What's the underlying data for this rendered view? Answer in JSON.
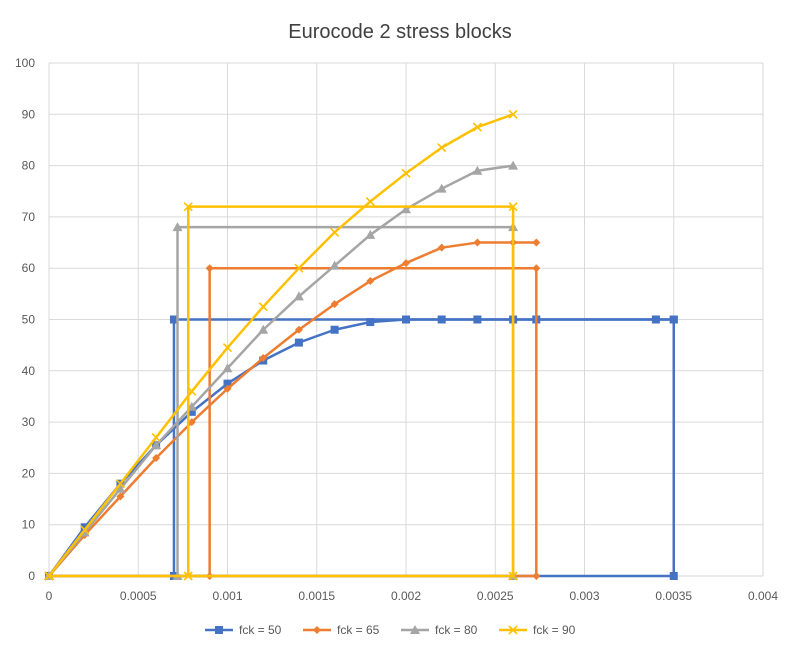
{
  "chart_data": {
    "type": "scatter",
    "title": "Eurocode 2 stress blocks",
    "xlabel": "",
    "ylabel": "",
    "xlim": [
      0,
      0.004
    ],
    "ylim": [
      0,
      100
    ],
    "x_ticks": [
      0,
      0.0005,
      0.001,
      0.0015,
      0.002,
      0.0025,
      0.003,
      0.0035,
      0.004
    ],
    "x_tick_labels": [
      "0",
      "0.0005",
      "0.001",
      "0.0015",
      "0.002",
      "0.0025",
      "0.003",
      "0.0035",
      "0.004"
    ],
    "y_ticks": [
      0,
      10,
      20,
      30,
      40,
      50,
      60,
      70,
      80,
      90,
      100
    ],
    "y_tick_labels": [
      "0",
      "10",
      "20",
      "30",
      "40",
      "50",
      "60",
      "70",
      "80",
      "90",
      "100"
    ],
    "grid": true,
    "legend_position": "bottom",
    "series": [
      {
        "name": "fck = 50",
        "color": "#4472C4",
        "marker": "square",
        "curve": {
          "x": [
            0,
            0.0002,
            0.0004,
            0.0006,
            0.0008,
            0.001,
            0.0012,
            0.0014,
            0.0016,
            0.0018,
            0.002,
            0.0022,
            0.0024,
            0.0026,
            0.0028,
            0.003,
            0.0032,
            0.0034,
            0.0035
          ],
          "y": [
            0,
            9.5,
            18,
            25.5,
            32,
            37.5,
            42,
            45.5,
            48,
            49.5,
            50,
            50,
            50,
            50,
            50,
            50,
            50,
            50,
            50
          ]
        },
        "curve_markers_x": [
          0,
          0.0002,
          0.0004,
          0.0006,
          0.0008,
          0.001,
          0.0012,
          0.0014,
          0.0016,
          0.0018,
          0.002,
          0.0022,
          0.0024,
          0.0026,
          0.00273,
          0.0034,
          0.0035
        ],
        "curve_markers_y": [
          0,
          9.5,
          18,
          25.5,
          32,
          37.5,
          42,
          45.5,
          48,
          49.5,
          50,
          50,
          50,
          50,
          50,
          50,
          50
        ],
        "block": {
          "x": [
            0,
            0.0007,
            0.0007,
            0.0035,
            0.0035,
            0
          ],
          "y": [
            0,
            0,
            50,
            50,
            0,
            0
          ]
        }
      },
      {
        "name": "fck = 65",
        "color": "#ED7D31",
        "marker": "diamond",
        "curve": {
          "x": [
            0,
            0.0002,
            0.0004,
            0.0006,
            0.0008,
            0.001,
            0.0012,
            0.0014,
            0.0016,
            0.0018,
            0.002,
            0.0022,
            0.0024,
            0.0026,
            0.00273
          ],
          "y": [
            0,
            8,
            15.5,
            23,
            30,
            36.5,
            42.5,
            48,
            53,
            57.5,
            61,
            64,
            65,
            65,
            65
          ]
        },
        "block": {
          "x": [
            0,
            0.0009,
            0.0009,
            0.00273,
            0.00273,
            0
          ],
          "y": [
            0,
            0,
            60,
            60,
            0,
            0
          ]
        }
      },
      {
        "name": "fck = 80",
        "color": "#A5A5A5",
        "marker": "triangle",
        "curve": {
          "x": [
            0,
            0.0002,
            0.0004,
            0.0006,
            0.0008,
            0.001,
            0.0012,
            0.0014,
            0.0016,
            0.0018,
            0.002,
            0.0022,
            0.0024,
            0.0026
          ],
          "y": [
            0,
            8.5,
            17,
            25.5,
            33,
            40.5,
            48,
            54.5,
            60.5,
            66.5,
            71.5,
            75.5,
            79,
            80
          ]
        },
        "block": {
          "x": [
            0,
            0.00072,
            0.00072,
            0.0026,
            0.0026,
            0
          ],
          "y": [
            0,
            0,
            68,
            68,
            0,
            0
          ]
        }
      },
      {
        "name": "fck = 90",
        "color": "#FFC000",
        "marker": "x",
        "curve": {
          "x": [
            0,
            0.0002,
            0.0004,
            0.0006,
            0.0008,
            0.001,
            0.0012,
            0.0014,
            0.0016,
            0.0018,
            0.002,
            0.0022,
            0.0024,
            0.0026
          ],
          "y": [
            0,
            9,
            18,
            27,
            36,
            44.5,
            52.5,
            60,
            67,
            73,
            78.5,
            83.5,
            87.5,
            90
          ]
        },
        "block": {
          "x": [
            0,
            0.00078,
            0.00078,
            0.0026,
            0.0026,
            0
          ],
          "y": [
            0,
            0,
            72,
            72,
            0,
            0
          ]
        }
      }
    ]
  }
}
